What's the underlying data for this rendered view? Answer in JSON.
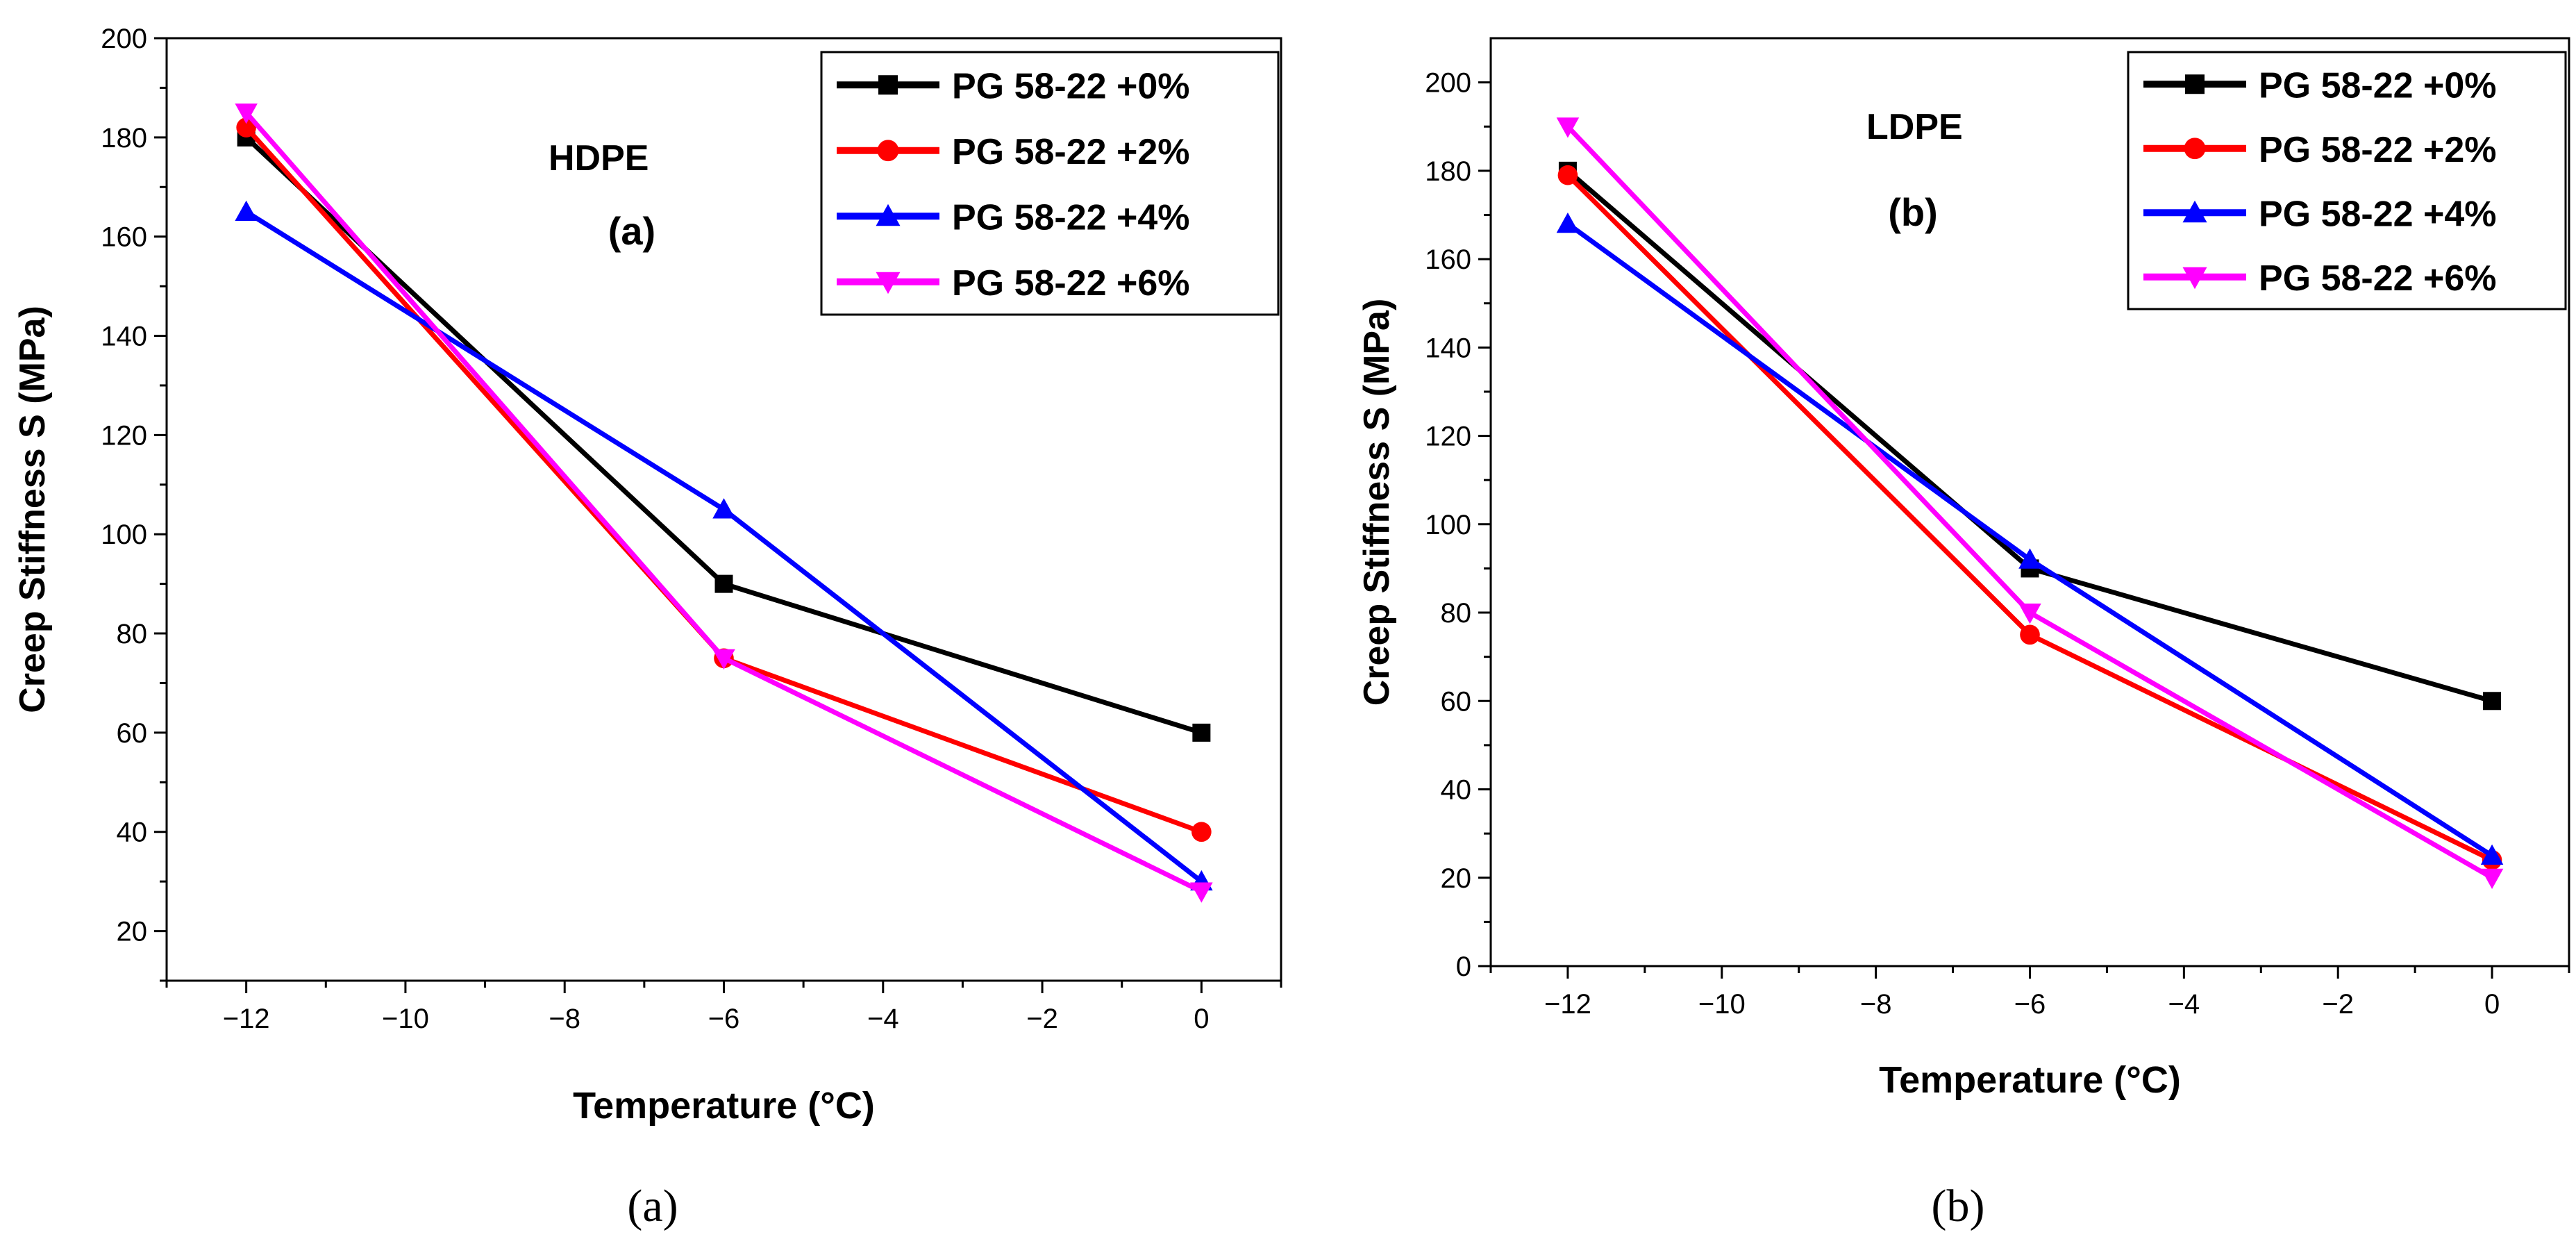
{
  "chart_data": [
    {
      "type": "line",
      "panel_label": "(a)",
      "caption": "(a)",
      "annotation": "HDPE",
      "xlabel": "Temperature (°C)",
      "ylabel": "Creep Stiffness S (MPa)",
      "xlim": [
        -13,
        1
      ],
      "ylim": [
        10,
        200
      ],
      "xticks": [
        -12,
        -10,
        -8,
        -6,
        -4,
        -2,
        0
      ],
      "yticks": [
        20,
        40,
        60,
        80,
        100,
        120,
        140,
        160,
        180,
        200
      ],
      "grid": false,
      "legend_position": "top-right",
      "x": [
        -12,
        -6,
        0
      ],
      "series": [
        {
          "name": "PG 58-22 +0%",
          "color": "#000000",
          "marker": "square",
          "values": [
            180,
            90,
            60
          ]
        },
        {
          "name": "PG 58-22 +2%",
          "color": "#ff0000",
          "marker": "circle",
          "values": [
            182,
            75,
            40
          ]
        },
        {
          "name": "PG 58-22 +4%",
          "color": "#0000ff",
          "marker": "triangle-up",
          "values": [
            165,
            105,
            30
          ]
        },
        {
          "name": "PG 58-22 +6%",
          "color": "#ff00ff",
          "marker": "triangle-down",
          "values": [
            185,
            75,
            28
          ]
        }
      ]
    },
    {
      "type": "line",
      "panel_label": "(b)",
      "caption": "(b)",
      "annotation": "LDPE",
      "xlabel": "Temperature (°C)",
      "ylabel": "Creep Stiffness S (MPa)",
      "xlim": [
        -13,
        1
      ],
      "ylim": [
        0,
        210
      ],
      "xticks": [
        -12,
        -10,
        -8,
        -6,
        -4,
        -2,
        0
      ],
      "yticks": [
        0,
        20,
        40,
        60,
        80,
        100,
        120,
        140,
        160,
        180,
        200
      ],
      "grid": false,
      "legend_position": "top-right",
      "x": [
        -12,
        -6,
        0
      ],
      "series": [
        {
          "name": "PG 58-22 +0%",
          "color": "#000000",
          "marker": "square",
          "values": [
            180,
            90,
            60
          ]
        },
        {
          "name": "PG 58-22 +2%",
          "color": "#ff0000",
          "marker": "circle",
          "values": [
            179,
            75,
            24
          ]
        },
        {
          "name": "PG 58-22 +4%",
          "color": "#0000ff",
          "marker": "triangle-up",
          "values": [
            168,
            92,
            25
          ]
        },
        {
          "name": "PG 58-22 +6%",
          "color": "#ff00ff",
          "marker": "triangle-down",
          "values": [
            190,
            80,
            20
          ]
        }
      ]
    }
  ]
}
